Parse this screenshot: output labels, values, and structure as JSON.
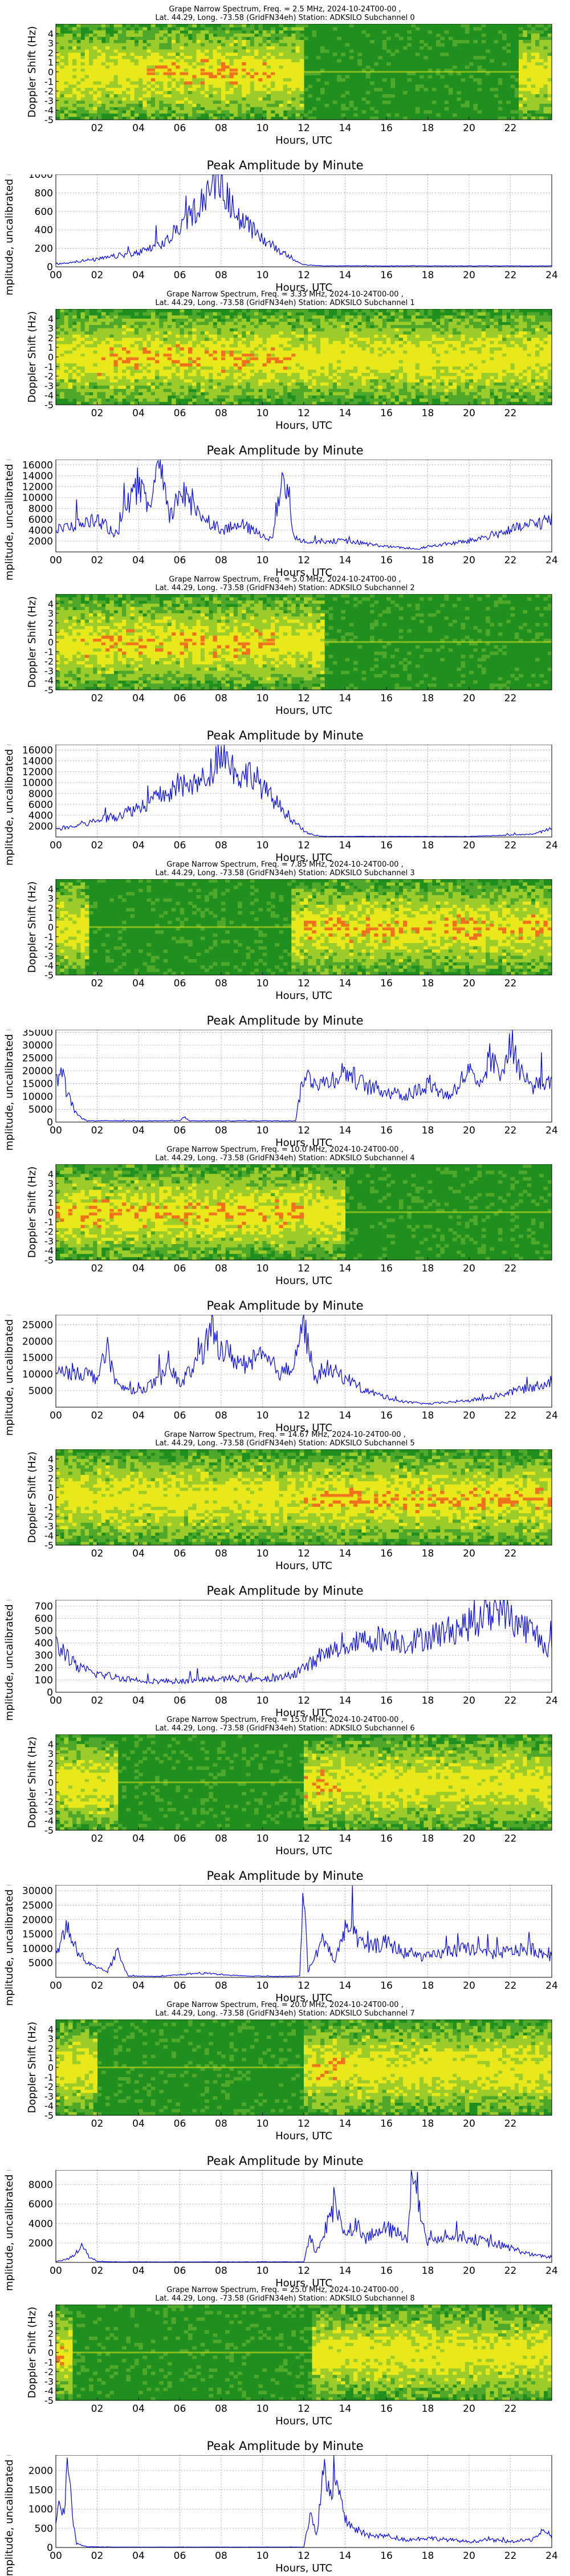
{
  "spectrogram_ylabel": "Doppler Shift (Hz)",
  "spectrogram_yticks": [
    "-5",
    "-4",
    "-3",
    "-2",
    "-1",
    "0",
    "1",
    "2",
    "3",
    "4"
  ],
  "spectrogram_xticks": [
    "02",
    "04",
    "06",
    "08",
    "10",
    "12",
    "14",
    "16",
    "18",
    "20",
    "22"
  ],
  "amplitude_title": "Peak Amplitude by Minute",
  "amplitude_ylabel": "Amplitude, uncalibrated units",
  "amplitude_xticks": [
    "00",
    "02",
    "04",
    "06",
    "08",
    "10",
    "12",
    "14",
    "16",
    "18",
    "20",
    "22",
    "24"
  ],
  "xlabel": "Hours, UTC",
  "colors": {
    "spectrogram_low": "#1f8f1f",
    "spectrogram_mid": "#e8e81a",
    "spectrogram_high": "#f07020",
    "amplitude_line": "#0000ff",
    "grid": "#b0b0b0"
  },
  "chart_data": [
    {
      "type": "heatmap",
      "title_line1": "Grape Narrow Spectrum, Freq. = 2.5 MHz, 2024-10-24T00-00 ,",
      "title_line2": "Lat. 44.29, Long. -73.58 (GridFN34eh) Station: ADKSILO Subchannel 0",
      "xlabel": "Hours, UTC",
      "ylabel": "Doppler Shift (Hz)",
      "xlim": [
        0,
        24
      ],
      "ylim": [
        -5,
        5
      ],
      "strong_hours": [
        0,
        12
      ],
      "red_hours": [
        4.5,
        10.5
      ],
      "late_signal_hours": [
        22.5,
        24
      ]
    },
    {
      "type": "line",
      "title": "Peak Amplitude by Minute",
      "xlabel": "Hours, UTC",
      "ylabel": "Amplitude, uncalibrated units",
      "xlim": [
        0,
        24
      ],
      "ylim": [
        0,
        1000
      ],
      "yticks": [
        0,
        200,
        400,
        600,
        800,
        1000
      ],
      "x": [
        0,
        0.5,
        1,
        2,
        3,
        4,
        5,
        5.5,
        6,
        6.5,
        7,
        7.3,
        7.6,
        7.9,
        8.2,
        8.5,
        9,
        9.5,
        10,
        10.5,
        11,
        11.5,
        12,
        13,
        16,
        20,
        24
      ],
      "y": [
        30,
        40,
        60,
        80,
        120,
        150,
        230,
        300,
        450,
        550,
        700,
        820,
        880,
        1000,
        800,
        650,
        500,
        400,
        300,
        230,
        150,
        90,
        20,
        10,
        10,
        10,
        10
      ]
    },
    {
      "type": "heatmap",
      "title_line1": "Grape Narrow Spectrum, Freq. = 3.33 MHz, 2024-10-24T00-00 ,",
      "title_line2": "Lat. 44.29, Long. -73.58 (GridFN34eh) Station: ADKSILO Subchannel 1",
      "xlabel": "Hours, UTC",
      "ylabel": "Doppler Shift (Hz)",
      "xlim": [
        0,
        24
      ],
      "ylim": [
        -5,
        5
      ],
      "strong_hours": [
        0,
        24
      ],
      "red_hours": [
        2,
        11.5
      ]
    },
    {
      "type": "line",
      "title": "Peak Amplitude by Minute",
      "xlabel": "Hours, UTC",
      "ylabel": "Amplitude, uncalibrated units",
      "xlim": [
        0,
        24
      ],
      "ylim": [
        0,
        17000
      ],
      "yticks": [
        2000,
        4000,
        6000,
        8000,
        10000,
        12000,
        14000,
        16000
      ],
      "x": [
        0,
        1,
        2,
        3,
        3.5,
        4,
        4.5,
        5,
        5.5,
        6,
        7,
        8,
        9,
        10,
        10.5,
        11,
        11.5,
        12,
        14,
        16,
        17.5,
        18,
        19,
        20,
        21,
        22,
        23,
        24
      ],
      "y": [
        4000,
        5000,
        6000,
        3000,
        9000,
        12000,
        8000,
        16000,
        6000,
        11000,
        7000,
        4000,
        5000,
        3000,
        2500,
        15000,
        3000,
        2000,
        2000,
        1000,
        500,
        1000,
        1500,
        2000,
        3000,
        4000,
        5000,
        6000
      ]
    },
    {
      "type": "heatmap",
      "title_line1": "Grape Narrow Spectrum, Freq. = 5.0 MHz, 2024-10-24T00-00 ,",
      "title_line2": "Lat. 44.29, Long. -73.58 (GridFN34eh) Station: ADKSILO Subchannel 2",
      "xlabel": "Hours, UTC",
      "ylabel": "Doppler Shift (Hz)",
      "xlim": [
        0,
        24
      ],
      "ylim": [
        -5,
        5
      ],
      "strong_hours": [
        0,
        13
      ],
      "red_hours": [
        1,
        10.5
      ]
    },
    {
      "type": "line",
      "title": "Peak Amplitude by Minute",
      "xlabel": "Hours, UTC",
      "ylabel": "Amplitude, uncalibrated units",
      "xlim": [
        0,
        24
      ],
      "ylim": [
        0,
        17000
      ],
      "yticks": [
        2000,
        4000,
        6000,
        8000,
        10000,
        12000,
        14000,
        16000
      ],
      "x": [
        0,
        1,
        2,
        3,
        4,
        5,
        6,
        7,
        7.5,
        8,
        8.5,
        9,
        9.5,
        10,
        10.5,
        11,
        11.5,
        12,
        12.5,
        13,
        16,
        20,
        23,
        24
      ],
      "y": [
        1500,
        2000,
        3000,
        4000,
        5500,
        7500,
        9000,
        10000,
        12000,
        17000,
        13000,
        11000,
        12000,
        9000,
        7000,
        5000,
        3000,
        1000,
        300,
        100,
        100,
        100,
        500,
        1500
      ]
    },
    {
      "type": "heatmap",
      "title_line1": "Grape Narrow Spectrum, Freq. = 7.85 MHz, 2024-10-24T00-00 ,",
      "title_line2": "Lat. 44.29, Long. -73.58 (GridFN34eh) Station: ADKSILO Subchannel 3",
      "xlabel": "Hours, UTC",
      "ylabel": "Doppler Shift (Hz)",
      "xlim": [
        0,
        24
      ],
      "ylim": [
        -5,
        5
      ],
      "strong_hours": [
        0,
        1.5
      ],
      "strong_hours_2": [
        11.5,
        24
      ],
      "red_hours": [
        12,
        24
      ]
    },
    {
      "type": "line",
      "title": "Peak Amplitude by Minute",
      "xlabel": "Hours, UTC",
      "ylabel": "Amplitude, uncalibrated units",
      "xlim": [
        0,
        24
      ],
      "ylim": [
        0,
        36000
      ],
      "yticks": [
        0,
        5000,
        10000,
        15000,
        20000,
        25000,
        30000,
        35000
      ],
      "x": [
        0,
        0.3,
        0.6,
        1,
        1.5,
        2,
        4,
        6,
        6.2,
        6.5,
        8,
        10,
        11.6,
        11.8,
        12,
        13,
        14,
        15,
        16,
        17,
        18,
        19,
        20,
        20.5,
        21,
        21.5,
        22,
        22.5,
        23,
        24
      ],
      "y": [
        15000,
        18000,
        10000,
        3000,
        500,
        500,
        500,
        500,
        2000,
        500,
        500,
        500,
        500,
        10000,
        18000,
        15000,
        20000,
        14000,
        12000,
        10000,
        15000,
        10000,
        20000,
        12000,
        25000,
        18000,
        33000,
        20000,
        14000,
        15000
      ]
    },
    {
      "type": "heatmap",
      "title_line1": "Grape Narrow Spectrum, Freq. = 10.0 MHz, 2024-10-24T00-00 ,",
      "title_line2": "Lat. 44.29, Long. -73.58 (GridFN34eh) Station: ADKSILO Subchannel 4",
      "xlabel": "Hours, UTC",
      "ylabel": "Doppler Shift (Hz)",
      "xlim": [
        0,
        24
      ],
      "ylim": [
        -5,
        5
      ],
      "strong_hours": [
        0,
        14
      ],
      "red_hours": [
        0,
        12
      ]
    },
    {
      "type": "line",
      "title": "Peak Amplitude by Minute",
      "xlabel": "Hours, UTC",
      "ylabel": "Amplitude, uncalibrated units",
      "xlim": [
        0,
        24
      ],
      "ylim": [
        0,
        28000
      ],
      "yticks": [
        5000,
        10000,
        15000,
        20000,
        25000
      ],
      "x": [
        0,
        1,
        2,
        2.5,
        3,
        4,
        5,
        5.5,
        6,
        7,
        7.5,
        8,
        9,
        10,
        11,
        11.5,
        12,
        12.5,
        13,
        14,
        15,
        16,
        17,
        18,
        19,
        20,
        21,
        22,
        23,
        24
      ],
      "y": [
        10000,
        11000,
        9000,
        17000,
        6000,
        5000,
        8000,
        12000,
        7000,
        15000,
        23000,
        18000,
        13000,
        15000,
        10000,
        14000,
        27000,
        8000,
        12000,
        9000,
        5000,
        3000,
        1500,
        1000,
        1500,
        2000,
        3000,
        4500,
        6000,
        8000
      ]
    },
    {
      "type": "heatmap",
      "title_line1": "Grape Narrow Spectrum, Freq. = 14.67 MHz, 2024-10-24T00-00 ,",
      "title_line2": "Lat. 44.29, Long. -73.58 (GridFN34eh) Station: ADKSILO Subchannel 5",
      "xlabel": "Hours, UTC",
      "ylabel": "Doppler Shift (Hz)",
      "xlim": [
        0,
        24
      ],
      "ylim": [
        -5,
        5
      ],
      "strong_hours": [
        0,
        24
      ],
      "red_hours": [
        12,
        24
      ]
    },
    {
      "type": "line",
      "title": "Peak Amplitude by Minute",
      "xlabel": "Hours, UTC",
      "ylabel": "Amplitude, uncalibrated units",
      "xlim": [
        0,
        24
      ],
      "ylim": [
        0,
        750
      ],
      "yticks": [
        0,
        100,
        200,
        300,
        400,
        500,
        600,
        700
      ],
      "x": [
        0,
        0.5,
        1,
        2,
        3,
        4,
        5,
        6,
        7,
        8,
        9,
        10,
        11,
        11.5,
        12,
        13,
        14,
        15,
        16,
        17,
        18,
        19,
        20,
        21,
        21.5,
        22,
        23,
        24
      ],
      "y": [
        380,
        320,
        200,
        150,
        120,
        100,
        90,
        90,
        100,
        110,
        110,
        100,
        120,
        150,
        200,
        300,
        380,
        420,
        450,
        400,
        450,
        500,
        550,
        650,
        720,
        600,
        500,
        350
      ]
    },
    {
      "type": "heatmap",
      "title_line1": "Grape Narrow Spectrum, Freq. = 15.0 MHz, 2024-10-24T00-00 ,",
      "title_line2": "Lat. 44.29, Long. -73.58 (GridFN34eh) Station: ADKSILO Subchannel 6",
      "xlabel": "Hours, UTC",
      "ylabel": "Doppler Shift (Hz)",
      "xlim": [
        0,
        24
      ],
      "ylim": [
        -5,
        5
      ],
      "strong_hours": [
        0,
        3
      ],
      "strong_hours_2": [
        12,
        24
      ],
      "red_hours": [
        12,
        14
      ]
    },
    {
      "type": "line",
      "title": "Peak Amplitude by Minute",
      "xlabel": "Hours, UTC",
      "ylabel": "Amplitude, uncalibrated units",
      "xlim": [
        0,
        24
      ],
      "ylim": [
        0,
        32000
      ],
      "yticks": [
        5000,
        10000,
        15000,
        20000,
        25000,
        30000
      ],
      "x": [
        0,
        0.5,
        1,
        1.5,
        2,
        2.5,
        3,
        3.5,
        5,
        7,
        9,
        11,
        11.8,
        12,
        12.2,
        13,
        13.5,
        14,
        15,
        16,
        17,
        18,
        19,
        20,
        21,
        22,
        23,
        24
      ],
      "y": [
        8000,
        18000,
        10000,
        5000,
        3000,
        2000,
        9000,
        500,
        300,
        1500,
        500,
        300,
        500,
        32000,
        2000,
        14000,
        5000,
        18000,
        10000,
        12000,
        8000,
        7000,
        9000,
        10000,
        8000,
        9000,
        10000,
        7000
      ]
    },
    {
      "type": "heatmap",
      "title_line1": "Grape Narrow Spectrum, Freq. = 20.0 MHz, 2024-10-24T00-00 ,",
      "title_line2": "Lat. 44.29, Long. -73.58 (GridFN34eh) Station: ADKSILO Subchannel 7",
      "xlabel": "Hours, UTC",
      "ylabel": "Doppler Shift (Hz)",
      "xlim": [
        0,
        24
      ],
      "ylim": [
        -5,
        5
      ],
      "strong_hours": [
        0,
        2
      ],
      "strong_hours_2": [
        12,
        24
      ],
      "red_hours": [
        12.5,
        14
      ]
    },
    {
      "type": "line",
      "title": "Peak Amplitude by Minute",
      "xlabel": "Hours, UTC",
      "ylabel": "Amplitude, uncalibrated units",
      "xlim": [
        0,
        24
      ],
      "ylim": [
        0,
        9500
      ],
      "yticks": [
        2000,
        4000,
        6000,
        8000
      ],
      "x": [
        0,
        0.5,
        1,
        1.3,
        1.6,
        2,
        3,
        6,
        9,
        11,
        12,
        12.3,
        12.6,
        13,
        13.5,
        14,
        14.5,
        15,
        16,
        17,
        17.2,
        18,
        19,
        20,
        21,
        22,
        23,
        24
      ],
      "y": [
        100,
        300,
        800,
        1800,
        600,
        100,
        50,
        50,
        50,
        50,
        50,
        2500,
        1000,
        3000,
        6000,
        3000,
        4000,
        2500,
        3500,
        2500,
        9000,
        2000,
        3000,
        2500,
        2000,
        1500,
        800,
        500
      ]
    },
    {
      "type": "heatmap",
      "title_line1": "Grape Narrow Spectrum, Freq. = 25.0 MHz, 2024-10-24T00-00 ,",
      "title_line2": "Lat. 44.29, Long. -73.58 (GridFN34eh) Station: ADKSILO Subchannel 8",
      "xlabel": "Hours, UTC",
      "ylabel": "Doppler Shift (Hz)",
      "xlim": [
        0,
        24
      ],
      "ylim": [
        -5,
        5
      ],
      "strong_hours": [
        0,
        0.8
      ],
      "strong_hours_2": [
        12.5,
        24
      ],
      "red_hours": [
        0,
        0.6
      ]
    },
    {
      "type": "line",
      "title": "Peak Amplitude by Minute",
      "xlabel": "Hours, UTC",
      "ylabel": "Amplitude, uncalibrated units",
      "xlim": [
        0,
        24
      ],
      "ylim": [
        0,
        2400
      ],
      "yticks": [
        0,
        500,
        1000,
        1500,
        2000
      ],
      "x": [
        0,
        0.2,
        0.4,
        0.6,
        0.8,
        1,
        1.5,
        3,
        6,
        9,
        12,
        12.3,
        12.6,
        13,
        13.2,
        13.5,
        14,
        14.5,
        15,
        16,
        17,
        18,
        19,
        20,
        21,
        22,
        23,
        23.5,
        24
      ],
      "y": [
        500,
        1200,
        800,
        2300,
        700,
        100,
        20,
        10,
        10,
        10,
        10,
        900,
        300,
        2200,
        1500,
        1800,
        700,
        500,
        300,
        300,
        200,
        250,
        200,
        150,
        200,
        150,
        200,
        400,
        250
      ]
    }
  ]
}
